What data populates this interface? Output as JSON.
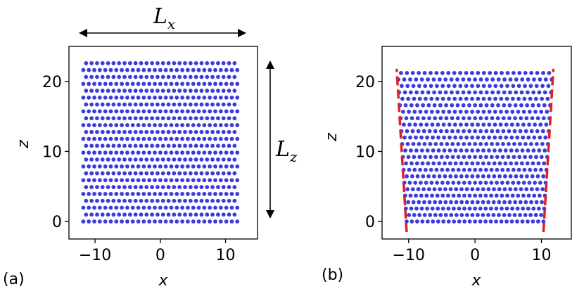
{
  "chart_data": [
    {
      "panel": "(a)",
      "type": "scatter",
      "xlabel": "x",
      "ylabel": "z",
      "xlim": [
        -14.0,
        14.9
      ],
      "ylim": [
        -2.5,
        25.0
      ],
      "x_ticks": [
        -10,
        0,
        10
      ],
      "x_tick_labels": [
        "−10",
        "0",
        "10"
      ],
      "y_ticks": [
        0,
        10,
        20
      ],
      "y_tick_labels": [
        "0",
        "10",
        "20"
      ],
      "marker_color": "#3b3bdc",
      "lattice": {
        "x_range": [
          -11.8,
          11.8
        ],
        "z_range": [
          0.0,
          22.6
        ],
        "rows": 24,
        "cols": 29,
        "hexagonal": true
      },
      "annotations": [
        {
          "text": "L",
          "subscript": "x",
          "kind": "double-arrow-horizontal"
        },
        {
          "text": "L",
          "subscript": "z",
          "kind": "double-arrow-vertical"
        }
      ]
    },
    {
      "panel": "(b)",
      "type": "scatter",
      "xlabel": "x",
      "ylabel": "z",
      "xlim": [
        -14.0,
        14.5
      ],
      "ylim": [
        -2.5,
        25.0
      ],
      "x_ticks": [
        -10,
        0,
        10
      ],
      "x_tick_labels": [
        "−10",
        "0",
        "10"
      ],
      "y_ticks": [
        0,
        10,
        20
      ],
      "y_tick_labels": [
        "0",
        "10",
        "20"
      ],
      "marker_color": "#3b3bdc",
      "lattice": {
        "x_bottom": [
          -10.3,
          10.3
        ],
        "x_top": [
          -11.6,
          11.6
        ],
        "z_range": [
          0.0,
          21.2
        ],
        "rows": 24,
        "cols": 27,
        "hexagonal": true
      },
      "boundary_lines": {
        "color": "#e02020",
        "style": "dashed",
        "left": {
          "from": [
            -10.3,
            -1.5
          ],
          "to": [
            -11.8,
            21.8
          ]
        },
        "right": {
          "from": [
            10.3,
            -1.5
          ],
          "to": [
            11.8,
            21.8
          ]
        }
      }
    }
  ]
}
